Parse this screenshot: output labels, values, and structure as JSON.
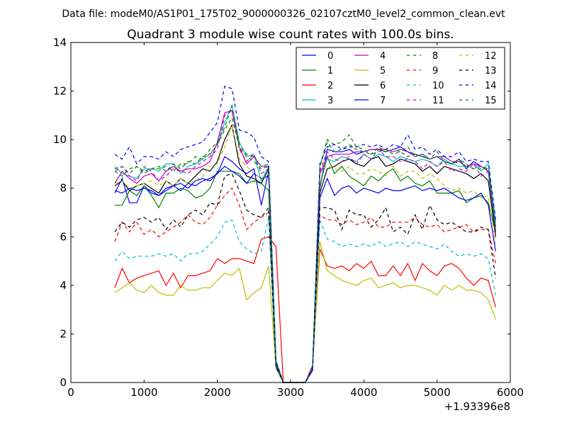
{
  "chart_data": {
    "type": "line",
    "suptitle": "Data file: modeM0/AS1P01_175T02_9000000326_02107cztM0_level2_common_clean.evt",
    "title": "Quadrant 3 module wise count rates with 100.0s bins.",
    "xlabel": "",
    "ylabel": "",
    "x_offset_label": "+1.93396e8",
    "xlim": [
      0,
      6000
    ],
    "ylim": [
      0,
      14
    ],
    "xticks": [
      0,
      1000,
      2000,
      3000,
      4000,
      5000,
      6000
    ],
    "yticks": [
      0,
      2,
      4,
      6,
      8,
      10,
      12,
      14
    ],
    "x": [
      600,
      700,
      800,
      900,
      1000,
      1100,
      1200,
      1300,
      1400,
      1500,
      1600,
      1700,
      1800,
      1900,
      2000,
      2100,
      2200,
      2300,
      2400,
      2500,
      2600,
      2700,
      2800,
      2900,
      3000,
      3100,
      3200,
      3300,
      3400,
      3500,
      3600,
      3700,
      3800,
      3900,
      4000,
      4100,
      4200,
      4300,
      4400,
      4500,
      4600,
      4700,
      4800,
      4900,
      5000,
      5100,
      5200,
      5300,
      5400,
      5500,
      5600,
      5700,
      5800
    ],
    "legend": {
      "placement": "top-right",
      "columns": 4
    },
    "series": [
      {
        "name": "0",
        "color": "#0000ff",
        "dash": "solid",
        "values": [
          7.8,
          8.4,
          7.4,
          7.4,
          8.1,
          7.8,
          7.7,
          7.9,
          8.1,
          8.2,
          8.0,
          8.3,
          8.4,
          8.3,
          8.6,
          9.3,
          9.1,
          8.8,
          8.6,
          8.8,
          7.3,
          8.7,
          0.7,
          0.0,
          0.0,
          0.0,
          0.0,
          0.5,
          8.0,
          9.6,
          9.5,
          9.5,
          9.6,
          9.4,
          9.5,
          9.6,
          9.6,
          9.5,
          9.6,
          9.7,
          9.5,
          9.4,
          9.3,
          9.2,
          9.3,
          9.1,
          9.0,
          9.2,
          8.8,
          9.1,
          8.9,
          8.7,
          6.4
        ]
      },
      {
        "name": "1",
        "color": "#008000",
        "dash": "solid",
        "values": [
          7.3,
          7.3,
          7.9,
          7.7,
          8.1,
          7.7,
          7.2,
          7.8,
          7.8,
          8.0,
          7.9,
          7.6,
          7.7,
          8.0,
          8.7,
          8.7,
          8.7,
          8.6,
          8.2,
          8.3,
          8.2,
          7.9,
          0.9,
          0.0,
          0.0,
          0.0,
          0.0,
          0.6,
          8.1,
          9.3,
          8.6,
          8.9,
          8.5,
          8.3,
          8.1,
          8.5,
          8.3,
          8.6,
          8.8,
          8.3,
          8.5,
          8.2,
          8.1,
          8.3,
          7.8,
          7.8,
          7.8,
          7.9,
          7.4,
          7.6,
          7.7,
          7.4,
          6.2
        ]
      },
      {
        "name": "2",
        "color": "#ff0000",
        "dash": "solid",
        "values": [
          3.9,
          4.7,
          4.1,
          4.3,
          4.4,
          4.5,
          4.6,
          4.0,
          4.5,
          3.9,
          4.4,
          4.4,
          4.5,
          4.6,
          5.1,
          4.9,
          5.1,
          5.1,
          5.0,
          4.9,
          5.9,
          6.0,
          5.6,
          0.0,
          0.0,
          0.0,
          0.0,
          0.7,
          5.5,
          4.8,
          4.7,
          4.8,
          4.6,
          4.9,
          4.7,
          5.0,
          4.4,
          4.4,
          4.8,
          4.4,
          4.9,
          4.2,
          4.9,
          4.6,
          4.4,
          4.8,
          4.9,
          4.7,
          4.3,
          4.0,
          4.3,
          4.2,
          3.1
        ]
      },
      {
        "name": "3",
        "color": "#00bfbf",
        "dash": "solid",
        "values": [
          8.9,
          8.6,
          8.5,
          8.4,
          8.8,
          8.8,
          8.7,
          9.0,
          9.0,
          8.6,
          8.9,
          9.0,
          9.2,
          9.4,
          9.8,
          10.7,
          11.4,
          9.9,
          9.3,
          9.4,
          8.3,
          8.9,
          0.9,
          0.0,
          0.0,
          0.0,
          0.0,
          0.6,
          8.6,
          9.2,
          9.1,
          9.3,
          9.2,
          9.1,
          9.4,
          9.2,
          9.4,
          9.3,
          9.1,
          9.3,
          9.2,
          9.1,
          9.2,
          9.1,
          8.9,
          9.2,
          9.0,
          8.9,
          8.9,
          9.0,
          8.7,
          9.0,
          6.6
        ]
      },
      {
        "name": "4",
        "color": "#bf00bf",
        "dash": "solid",
        "values": [
          8.2,
          8.7,
          8.4,
          8.2,
          8.5,
          8.6,
          8.3,
          8.7,
          8.9,
          8.7,
          8.8,
          8.8,
          8.9,
          9.1,
          9.9,
          11.1,
          11.2,
          9.7,
          9.0,
          9.3,
          8.9,
          8.9,
          0.8,
          0.0,
          0.0,
          0.0,
          0.0,
          0.6,
          8.6,
          9.3,
          9.4,
          9.4,
          9.4,
          9.5,
          9.5,
          9.6,
          9.6,
          9.6,
          9.5,
          9.6,
          9.5,
          9.3,
          9.4,
          9.2,
          9.3,
          9.3,
          9.1,
          9.1,
          8.9,
          9.0,
          8.9,
          8.7,
          6.2
        ]
      },
      {
        "name": "5",
        "color": "#bfbf00",
        "dash": "solid",
        "values": [
          3.7,
          3.9,
          4.1,
          3.8,
          3.7,
          4.0,
          3.7,
          3.6,
          3.6,
          4.0,
          3.8,
          3.8,
          3.9,
          3.9,
          4.2,
          4.5,
          4.4,
          4.7,
          3.4,
          3.7,
          3.9,
          4.8,
          0.6,
          0.0,
          0.0,
          0.0,
          0.0,
          0.6,
          5.8,
          4.6,
          4.4,
          4.2,
          4.1,
          4.0,
          4.2,
          4.3,
          3.9,
          4.0,
          4.1,
          3.9,
          4.0,
          4.0,
          3.9,
          3.8,
          3.6,
          4.0,
          3.8,
          4.0,
          3.8,
          3.8,
          3.7,
          3.4,
          2.6
        ]
      },
      {
        "name": "6",
        "color": "#000000",
        "dash": "solid",
        "values": [
          8.1,
          8.3,
          7.9,
          8.1,
          8.2,
          8.0,
          7.8,
          8.3,
          8.1,
          8.4,
          8.2,
          8.5,
          8.8,
          8.7,
          9.1,
          10.0,
          10.6,
          9.0,
          8.5,
          8.4,
          8.2,
          8.8,
          0.8,
          0.0,
          0.0,
          0.0,
          0.0,
          0.6,
          7.8,
          8.8,
          8.9,
          9.1,
          9.2,
          9.0,
          8.9,
          9.2,
          9.3,
          8.9,
          9.0,
          9.2,
          9.1,
          9.0,
          8.7,
          8.9,
          8.6,
          8.9,
          8.8,
          8.7,
          8.6,
          8.4,
          8.6,
          8.3,
          6.0
        ]
      },
      {
        "name": "7",
        "color": "#0000ff",
        "dash": "solid",
        "values": [
          7.9,
          7.8,
          8.0,
          7.9,
          8.0,
          7.9,
          7.7,
          8.0,
          8.1,
          7.9,
          8.2,
          8.1,
          8.3,
          8.4,
          8.6,
          8.9,
          8.7,
          8.5,
          8.2,
          8.6,
          8.4,
          8.5,
          0.7,
          0.0,
          0.0,
          0.0,
          0.0,
          0.5,
          7.6,
          8.4,
          7.7,
          8.0,
          8.1,
          7.8,
          8.0,
          7.9,
          7.8,
          8.0,
          7.9,
          7.9,
          8.0,
          8.1,
          7.9,
          8.0,
          7.9,
          8.0,
          7.8,
          7.6,
          7.5,
          7.6,
          7.8,
          7.3,
          5.4
        ]
      },
      {
        "name": "8",
        "color": "#008000",
        "dash": "dash",
        "values": [
          8.7,
          8.5,
          8.8,
          8.9,
          8.6,
          8.8,
          8.8,
          8.9,
          8.7,
          9.0,
          9.0,
          9.3,
          9.2,
          9.6,
          9.9,
          10.5,
          11.4,
          9.8,
          9.4,
          9.3,
          8.9,
          9.0,
          0.9,
          0.0,
          0.0,
          0.0,
          0.0,
          0.6,
          8.9,
          10.0,
          9.8,
          9.9,
          10.2,
          9.7,
          9.6,
          9.4,
          9.7,
          9.5,
          9.6,
          9.5,
          9.7,
          9.3,
          9.4,
          9.2,
          9.5,
          9.1,
          9.0,
          9.2,
          9.0,
          8.8,
          8.8,
          8.8,
          6.3
        ]
      },
      {
        "name": "9",
        "color": "#ff0000",
        "dash": "dash",
        "values": [
          5.8,
          6.6,
          6.2,
          6.6,
          6.1,
          6.3,
          6.0,
          6.2,
          6.4,
          6.6,
          6.9,
          6.6,
          6.5,
          6.8,
          7.3,
          7.7,
          8.0,
          7.3,
          6.3,
          6.6,
          6.8,
          7.0,
          0.6,
          0.0,
          0.0,
          0.0,
          0.0,
          0.6,
          6.9,
          6.7,
          6.7,
          6.5,
          6.7,
          6.5,
          6.6,
          6.8,
          6.4,
          6.4,
          6.6,
          6.6,
          6.6,
          6.8,
          6.5,
          6.4,
          6.5,
          6.2,
          6.3,
          6.4,
          6.5,
          6.2,
          6.3,
          6.3,
          4.9
        ]
      },
      {
        "name": "10",
        "color": "#00bfbf",
        "dash": "dash",
        "values": [
          5.0,
          5.4,
          5.1,
          5.2,
          5.2,
          5.2,
          5.3,
          5.2,
          5.3,
          5.0,
          5.3,
          5.3,
          5.4,
          5.7,
          6.0,
          6.6,
          6.7,
          5.8,
          5.5,
          5.3,
          5.4,
          6.8,
          0.6,
          0.0,
          0.0,
          0.0,
          0.0,
          0.6,
          6.7,
          5.9,
          5.8,
          5.6,
          5.7,
          5.6,
          5.7,
          5.6,
          5.8,
          5.6,
          5.7,
          5.8,
          5.6,
          5.8,
          5.7,
          5.6,
          5.5,
          5.7,
          5.4,
          5.2,
          5.3,
          5.2,
          5.3,
          5.1,
          3.6
        ]
      },
      {
        "name": "11",
        "color": "#bf00bf",
        "dash": "dash",
        "values": [
          8.7,
          8.9,
          8.5,
          8.3,
          8.9,
          8.7,
          8.3,
          8.5,
          8.8,
          8.7,
          8.6,
          8.9,
          9.1,
          9.3,
          9.6,
          11.0,
          11.2,
          9.6,
          9.1,
          9.4,
          8.6,
          8.8,
          0.8,
          0.0,
          0.0,
          0.0,
          0.0,
          0.6,
          8.7,
          9.5,
          9.2,
          9.1,
          9.3,
          9.0,
          9.4,
          9.2,
          9.6,
          9.3,
          9.3,
          9.1,
          9.2,
          9.1,
          8.8,
          9.1,
          8.9,
          9.1,
          8.7,
          8.8,
          8.7,
          9.0,
          8.5,
          8.7,
          6.1
        ]
      },
      {
        "name": "12",
        "color": "#bfbf00",
        "dash": "dash",
        "values": [
          8.2,
          8.3,
          8.0,
          8.1,
          8.2,
          8.3,
          8.1,
          8.3,
          8.1,
          8.4,
          8.2,
          8.3,
          8.5,
          8.9,
          9.0,
          9.7,
          10.6,
          9.2,
          8.9,
          8.6,
          8.4,
          8.6,
          0.8,
          0.0,
          0.0,
          0.0,
          0.0,
          0.6,
          8.8,
          8.9,
          8.8,
          8.7,
          8.9,
          8.6,
          8.6,
          8.8,
          8.7,
          8.5,
          8.9,
          8.5,
          8.7,
          8.7,
          8.4,
          8.6,
          8.4,
          8.1,
          7.9,
          8.0,
          7.8,
          7.9,
          7.6,
          7.7,
          5.7
        ]
      },
      {
        "name": "13",
        "color": "#000000",
        "dash": "dash",
        "values": [
          6.2,
          6.6,
          6.4,
          6.7,
          6.8,
          6.6,
          6.8,
          6.3,
          6.7,
          6.4,
          6.9,
          7.1,
          6.9,
          7.4,
          7.3,
          8.5,
          8.6,
          7.9,
          7.1,
          6.9,
          6.8,
          7.2,
          0.7,
          0.0,
          0.0,
          0.0,
          0.0,
          0.6,
          7.2,
          7.2,
          7.1,
          6.3,
          7.1,
          6.9,
          6.9,
          6.4,
          6.7,
          7.2,
          6.2,
          6.4,
          6.1,
          6.9,
          6.3,
          7.3,
          6.7,
          6.5,
          6.6,
          6.4,
          6.2,
          6.2,
          6.4,
          6.3,
          4.3
        ]
      },
      {
        "name": "14",
        "color": "#0000ff",
        "dash": "dash",
        "values": [
          9.4,
          9.2,
          9.7,
          9.0,
          9.3,
          9.3,
          9.2,
          9.5,
          9.3,
          9.6,
          9.7,
          9.8,
          9.9,
          10.3,
          10.7,
          12.2,
          12.1,
          10.4,
          10.3,
          10.1,
          9.3,
          9.1,
          0.9,
          0.0,
          0.0,
          0.0,
          0.0,
          0.6,
          9.0,
          9.7,
          9.8,
          9.6,
          9.7,
          9.7,
          9.8,
          9.7,
          9.8,
          9.6,
          9.8,
          9.7,
          10.2,
          9.6,
          9.7,
          9.4,
          9.6,
          9.3,
          9.3,
          9.5,
          9.1,
          9.2,
          9.1,
          9.1,
          6.7
        ]
      },
      {
        "name": "15",
        "color": "#008000",
        "dash": "dash",
        "values": [
          8.8,
          8.9,
          8.6,
          8.9,
          8.7,
          8.8,
          8.9,
          8.7,
          9.0,
          8.8,
          9.1,
          9.0,
          9.3,
          9.4,
          9.8,
          10.4,
          10.9,
          9.7,
          9.3,
          9.1,
          8.8,
          8.9,
          0.8,
          0.0,
          0.0,
          0.0,
          0.0,
          0.6,
          8.9,
          9.9,
          9.5,
          9.6,
          9.8,
          9.6,
          9.5,
          9.4,
          9.5,
          9.6,
          9.4,
          9.5,
          9.3,
          9.4,
          9.3,
          9.2,
          9.3,
          9.1,
          9.0,
          9.1,
          8.9,
          8.8,
          8.9,
          8.8,
          6.2
        ]
      }
    ]
  }
}
